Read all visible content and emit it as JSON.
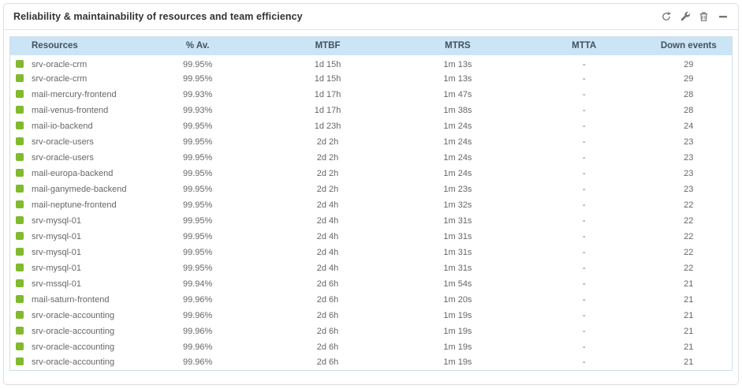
{
  "widget": {
    "title": "Reliability & maintainability of resources and team efficiency",
    "toolbar": {
      "refresh": "force-refresh",
      "configure": "configure",
      "delete": "delete",
      "minimize": "minimize"
    }
  },
  "colors": {
    "status_up": "#82b92e",
    "header_bg": "#cbe5f6",
    "header_text": "#42525c",
    "cell_text": "#676767",
    "table_border": "#cddfe9",
    "icon_color": "#7a746b"
  },
  "table": {
    "columns": [
      "Resources",
      "% Av.",
      "MTBF",
      "MTRS",
      "MTTA",
      "Down events"
    ],
    "row_fields": [
      "resource",
      "availability",
      "mtbf",
      "mtrs",
      "mtta",
      "down_events"
    ],
    "rows": [
      {
        "resource": "srv-oracle-crm",
        "availability": "99.95%",
        "mtbf": "1d 15h",
        "mtrs": "1m 13s",
        "mtta": "-",
        "down_events": "29"
      },
      {
        "resource": "srv-oracle-crm",
        "availability": "99.95%",
        "mtbf": "1d 15h",
        "mtrs": "1m 13s",
        "mtta": "-",
        "down_events": "29"
      },
      {
        "resource": "mail-mercury-frontend",
        "availability": "99.93%",
        "mtbf": "1d 17h",
        "mtrs": "1m 47s",
        "mtta": "-",
        "down_events": "28"
      },
      {
        "resource": "mail-venus-frontend",
        "availability": "99.93%",
        "mtbf": "1d 17h",
        "mtrs": "1m 38s",
        "mtta": "-",
        "down_events": "28"
      },
      {
        "resource": "mail-io-backend",
        "availability": "99.95%",
        "mtbf": "1d 23h",
        "mtrs": "1m 24s",
        "mtta": "-",
        "down_events": "24"
      },
      {
        "resource": "srv-oracle-users",
        "availability": "99.95%",
        "mtbf": "2d 2h",
        "mtrs": "1m 24s",
        "mtta": "-",
        "down_events": "23"
      },
      {
        "resource": "srv-oracle-users",
        "availability": "99.95%",
        "mtbf": "2d 2h",
        "mtrs": "1m 24s",
        "mtta": "-",
        "down_events": "23"
      },
      {
        "resource": "mail-europa-backend",
        "availability": "99.95%",
        "mtbf": "2d 2h",
        "mtrs": "1m 24s",
        "mtta": "-",
        "down_events": "23"
      },
      {
        "resource": "mail-ganymede-backend",
        "availability": "99.95%",
        "mtbf": "2d 2h",
        "mtrs": "1m 23s",
        "mtta": "-",
        "down_events": "23"
      },
      {
        "resource": "mail-neptune-frontend",
        "availability": "99.95%",
        "mtbf": "2d 4h",
        "mtrs": "1m 32s",
        "mtta": "-",
        "down_events": "22"
      },
      {
        "resource": "srv-mysql-01",
        "availability": "99.95%",
        "mtbf": "2d 4h",
        "mtrs": "1m 31s",
        "mtta": "-",
        "down_events": "22"
      },
      {
        "resource": "srv-mysql-01",
        "availability": "99.95%",
        "mtbf": "2d 4h",
        "mtrs": "1m 31s",
        "mtta": "-",
        "down_events": "22"
      },
      {
        "resource": "srv-mysql-01",
        "availability": "99.95%",
        "mtbf": "2d 4h",
        "mtrs": "1m 31s",
        "mtta": "-",
        "down_events": "22"
      },
      {
        "resource": "srv-mysql-01",
        "availability": "99.95%",
        "mtbf": "2d 4h",
        "mtrs": "1m 31s",
        "mtta": "-",
        "down_events": "22"
      },
      {
        "resource": "srv-mssql-01",
        "availability": "99.94%",
        "mtbf": "2d 6h",
        "mtrs": "1m 54s",
        "mtta": "-",
        "down_events": "21"
      },
      {
        "resource": "mail-saturn-frontend",
        "availability": "99.96%",
        "mtbf": "2d 6h",
        "mtrs": "1m 20s",
        "mtta": "-",
        "down_events": "21"
      },
      {
        "resource": "srv-oracle-accounting",
        "availability": "99.96%",
        "mtbf": "2d 6h",
        "mtrs": "1m 19s",
        "mtta": "-",
        "down_events": "21"
      },
      {
        "resource": "srv-oracle-accounting",
        "availability": "99.96%",
        "mtbf": "2d 6h",
        "mtrs": "1m 19s",
        "mtta": "-",
        "down_events": "21"
      },
      {
        "resource": "srv-oracle-accounting",
        "availability": "99.96%",
        "mtbf": "2d 6h",
        "mtrs": "1m 19s",
        "mtta": "-",
        "down_events": "21"
      },
      {
        "resource": "srv-oracle-accounting",
        "availability": "99.96%",
        "mtbf": "2d 6h",
        "mtrs": "1m 19s",
        "mtta": "-",
        "down_events": "21"
      }
    ]
  }
}
